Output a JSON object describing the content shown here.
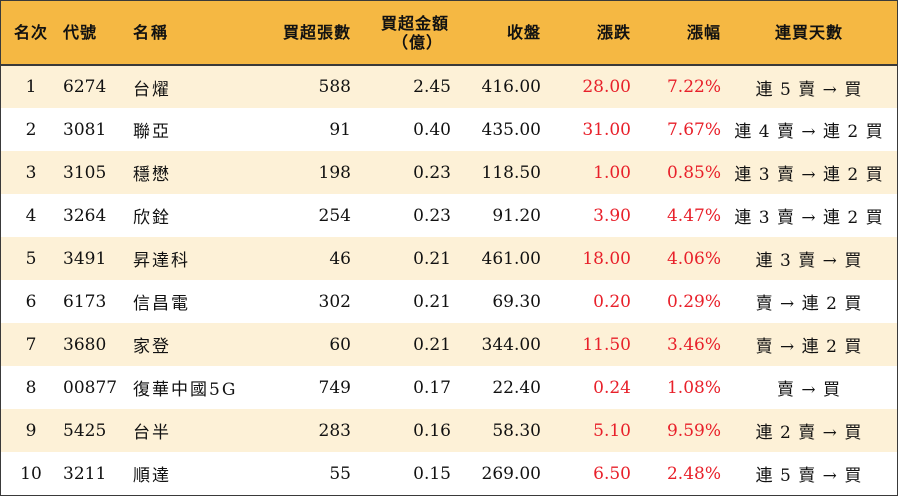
{
  "headers": {
    "rank": "名次",
    "code": "代號",
    "name": "名稱",
    "lots": "買超張數",
    "amount_line1": "買超金額",
    "amount_line2": "（億）",
    "close": "收盤",
    "change": "漲跌",
    "pct": "漲幅",
    "days": "連買天數"
  },
  "rows": [
    {
      "rank": "1",
      "code": "6274",
      "name": "台燿",
      "lots": "588",
      "amount": "2.45",
      "close": "416.00",
      "change": "28.00",
      "pct": "7.22%",
      "days": "連 5 賣 → 買"
    },
    {
      "rank": "2",
      "code": "3081",
      "name": "聯亞",
      "lots": "91",
      "amount": "0.40",
      "close": "435.00",
      "change": "31.00",
      "pct": "7.67%",
      "days": "連 4 賣 → 連 2 買"
    },
    {
      "rank": "3",
      "code": "3105",
      "name": "穩懋",
      "lots": "198",
      "amount": "0.23",
      "close": "118.50",
      "change": "1.00",
      "pct": "0.85%",
      "days": "連 3 賣 → 連 2 買"
    },
    {
      "rank": "4",
      "code": "3264",
      "name": "欣銓",
      "lots": "254",
      "amount": "0.23",
      "close": "91.20",
      "change": "3.90",
      "pct": "4.47%",
      "days": "連 3 賣 → 連 2 買"
    },
    {
      "rank": "5",
      "code": "3491",
      "name": "昇達科",
      "lots": "46",
      "amount": "0.21",
      "close": "461.00",
      "change": "18.00",
      "pct": "4.06%",
      "days": "連 3 賣 → 買"
    },
    {
      "rank": "6",
      "code": "6173",
      "name": "信昌電",
      "lots": "302",
      "amount": "0.21",
      "close": "69.30",
      "change": "0.20",
      "pct": "0.29%",
      "days": "賣 → 連 2 買"
    },
    {
      "rank": "7",
      "code": "3680",
      "name": "家登",
      "lots": "60",
      "amount": "0.21",
      "close": "344.00",
      "change": "11.50",
      "pct": "3.46%",
      "days": "賣 → 連 2 買"
    },
    {
      "rank": "8",
      "code": "00877",
      "name": "復華中國5G",
      "lots": "749",
      "amount": "0.17",
      "close": "22.40",
      "change": "0.24",
      "pct": "1.08%",
      "days": "賣 → 買"
    },
    {
      "rank": "9",
      "code": "5425",
      "name": "台半",
      "lots": "283",
      "amount": "0.16",
      "close": "58.30",
      "change": "5.10",
      "pct": "9.59%",
      "days": "連 2 賣 → 買"
    },
    {
      "rank": "10",
      "code": "3211",
      "name": "順達",
      "lots": "55",
      "amount": "0.15",
      "close": "269.00",
      "change": "6.50",
      "pct": "2.48%",
      "days": "連 5 賣 → 買"
    }
  ],
  "colors": {
    "header_bg": "#f5b843",
    "odd_row_bg": "#fdf1d7",
    "up": "#e8202a",
    "border": "#3a3a3a"
  }
}
